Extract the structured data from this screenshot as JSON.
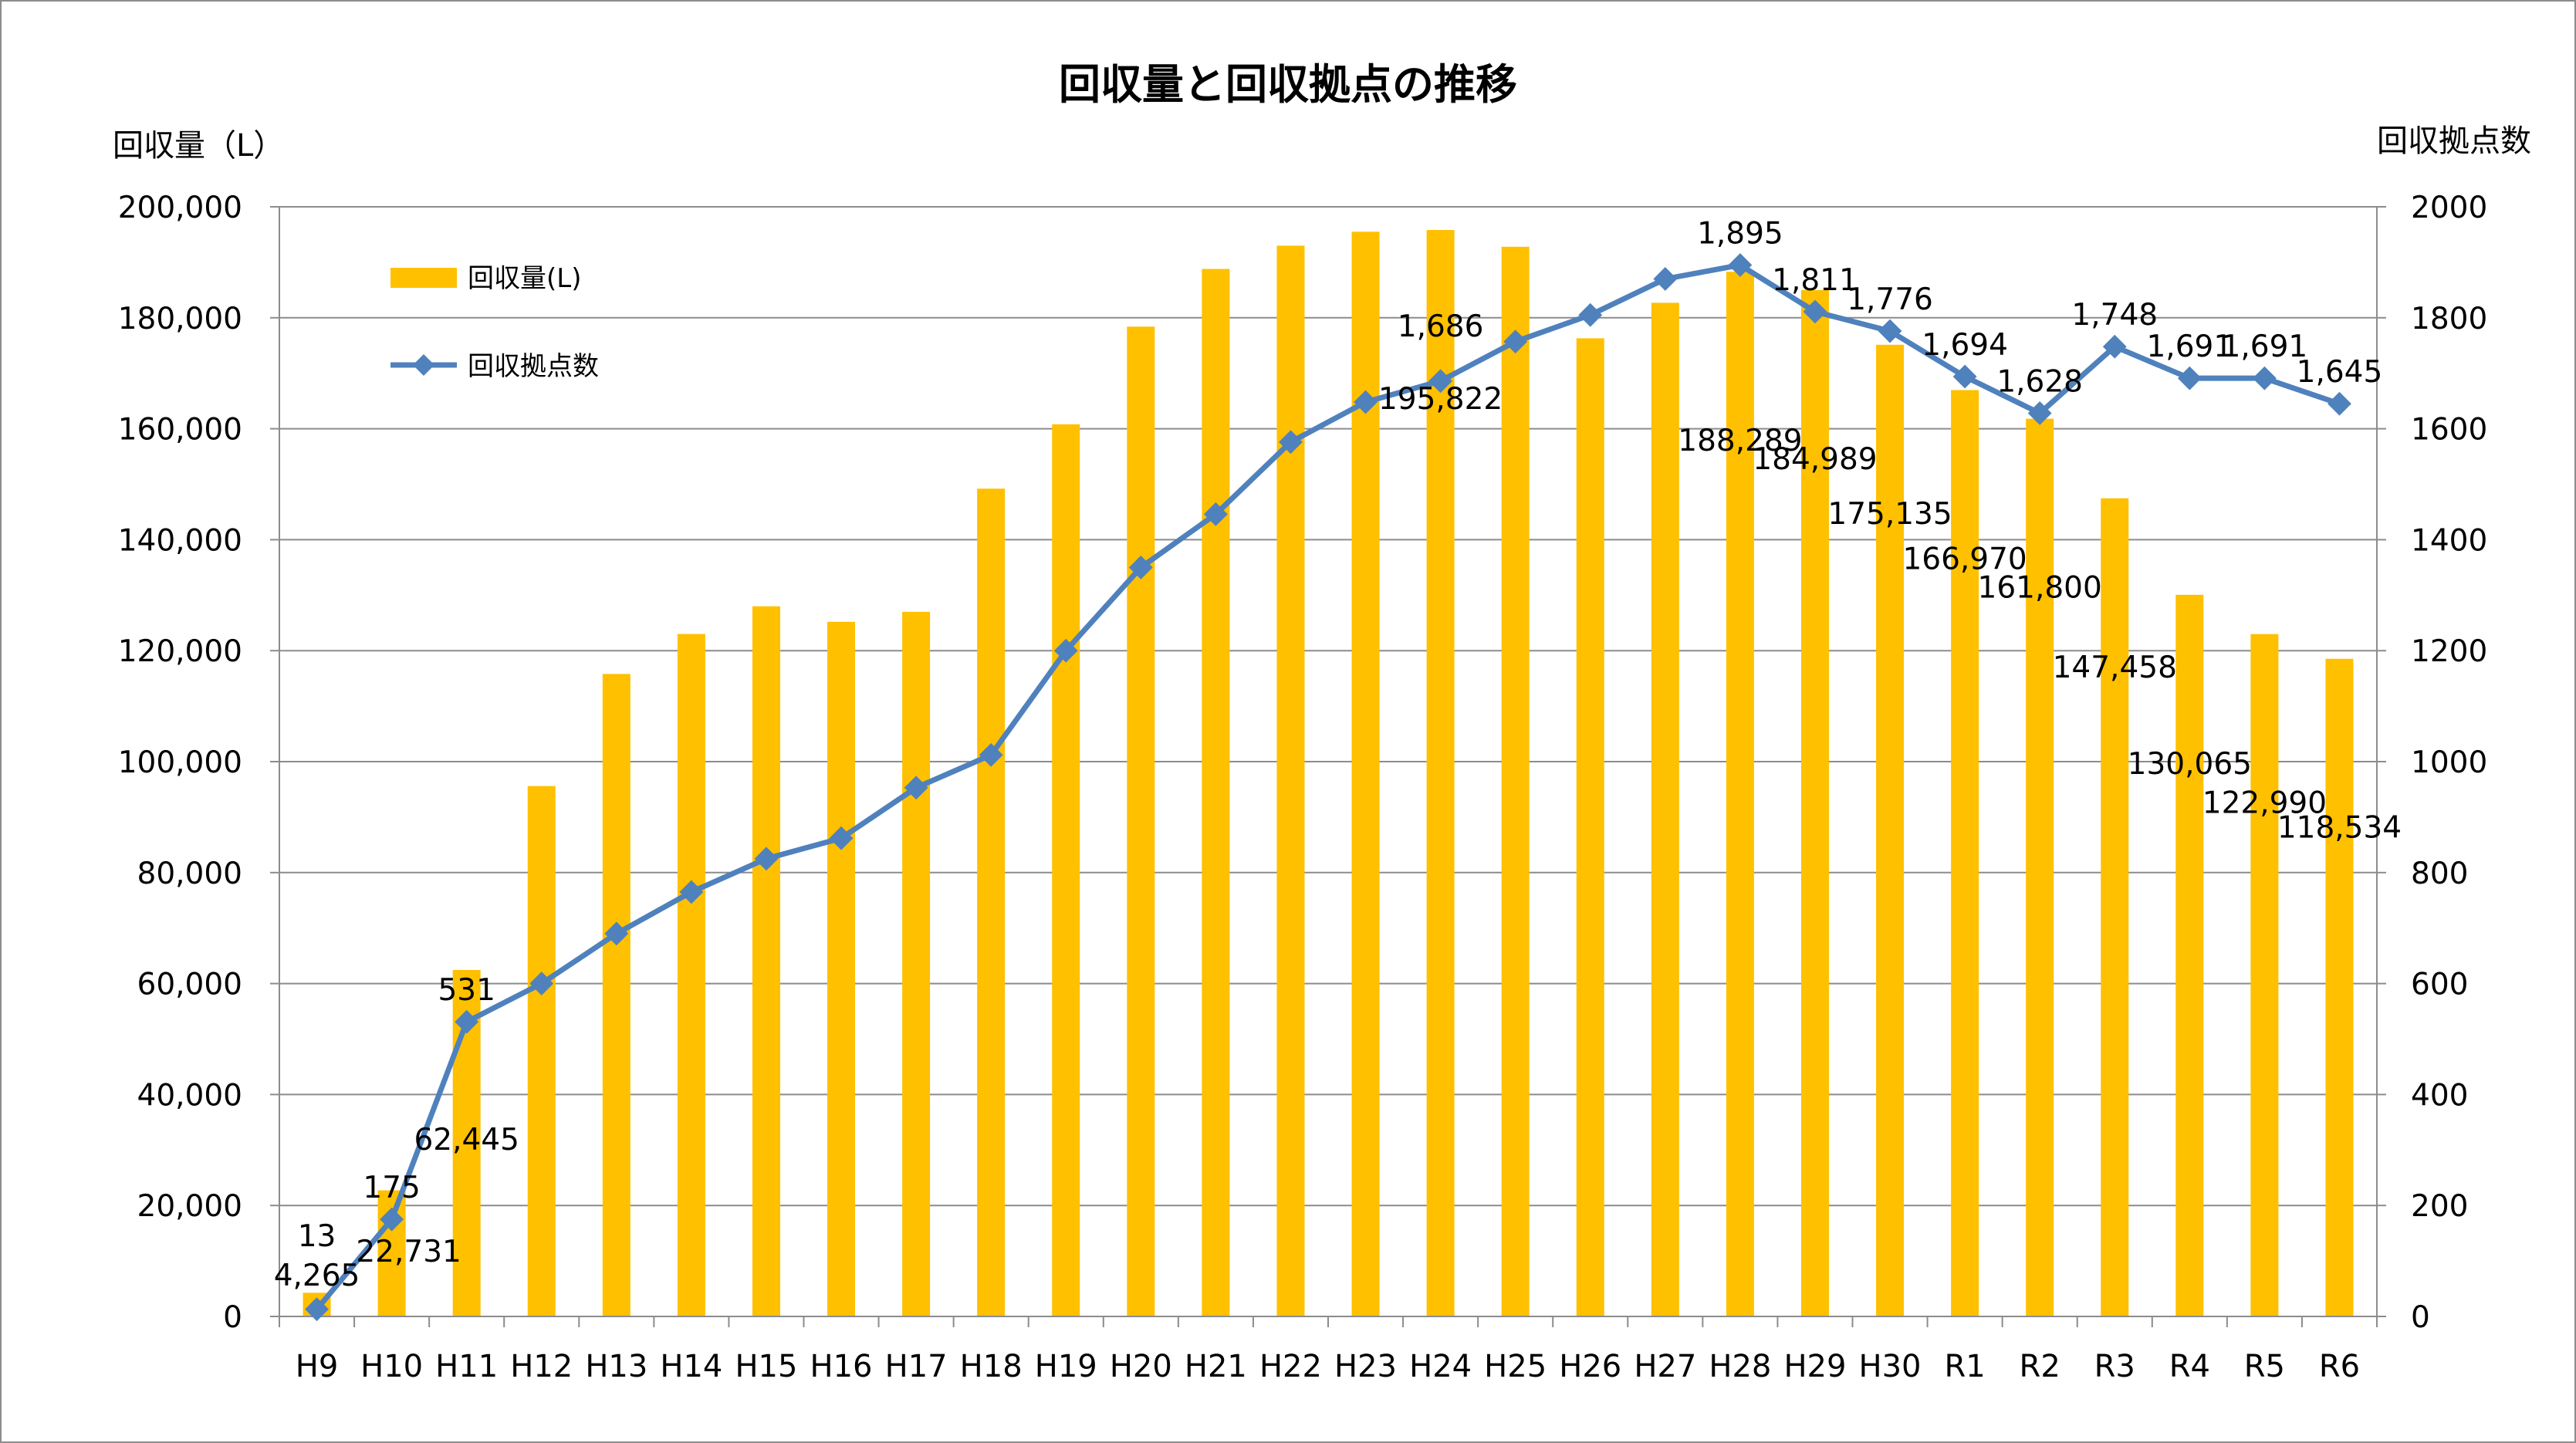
{
  "chart_data": {
    "type": "bar",
    "title": "回収量と回収拠点の推移",
    "ylabel": "回収量（L）",
    "y2label": "回収拠点数",
    "xlabel": "",
    "ylim": [
      0,
      200000
    ],
    "y2lim": [
      0,
      2000
    ],
    "yticks": [
      "0",
      "20,000",
      "40,000",
      "60,000",
      "80,000",
      "100,000",
      "120,000",
      "140,000",
      "160,000",
      "180,000",
      "200,000"
    ],
    "y2ticks": [
      "0",
      "200",
      "400",
      "600",
      "800",
      "1000",
      "1200",
      "1400",
      "1600",
      "1800",
      "2000"
    ],
    "grid": true,
    "legend_position": "top-left",
    "categories": [
      "H9",
      "H10",
      "H11",
      "H12",
      "H13",
      "H14",
      "H15",
      "H16",
      "H17",
      "H18",
      "H19",
      "H20",
      "H21",
      "H22",
      "H23",
      "H24",
      "H25",
      "H26",
      "H27",
      "H28",
      "H29",
      "H30",
      "R1",
      "R2",
      "R3",
      "R4",
      "R5",
      "R6"
    ],
    "series": [
      {
        "name": "回収量(L)",
        "type": "bar",
        "axis": "left",
        "color": "#FFC000",
        "values": [
          4265,
          22731,
          62445,
          95600,
          115800,
          123000,
          128000,
          125200,
          127000,
          149200,
          160800,
          178400,
          188800,
          193000,
          195500,
          195822,
          192800,
          176300,
          182700,
          188289,
          184989,
          175135,
          166970,
          161800,
          147458,
          130065,
          122990,
          118534
        ],
        "labels": [
          "4,265",
          "22,731",
          "62,445",
          "",
          "",
          "",
          "",
          "",
          "",
          "",
          "",
          "",
          "",
          "",
          "",
          "195,822",
          "",
          "",
          "",
          "188,289",
          "184,989",
          "175,135",
          "166,970",
          "161,800",
          "147,458",
          "130,065",
          "122,990",
          "118,534"
        ]
      },
      {
        "name": "回収拠点数",
        "type": "line",
        "axis": "right",
        "color": "#4F81BD",
        "marker": "diamond",
        "values": [
          13,
          175,
          531,
          600,
          690,
          765,
          825,
          862,
          953,
          1012,
          1200,
          1350,
          1446,
          1576,
          1648,
          1686,
          1757,
          1805,
          1870,
          1895,
          1811,
          1776,
          1694,
          1628,
          1748,
          1691,
          1691,
          1645
        ],
        "labels": [
          "13",
          "175",
          "531",
          "",
          "",
          "",
          "",
          "",
          "",
          "",
          "",
          "",
          "",
          "",
          "",
          "1,686",
          "",
          "",
          "",
          "1,895",
          "1,811",
          "1,776",
          "1,694",
          "1,628",
          "1,748",
          "1,691",
          "1,691",
          "1,645"
        ]
      }
    ]
  }
}
